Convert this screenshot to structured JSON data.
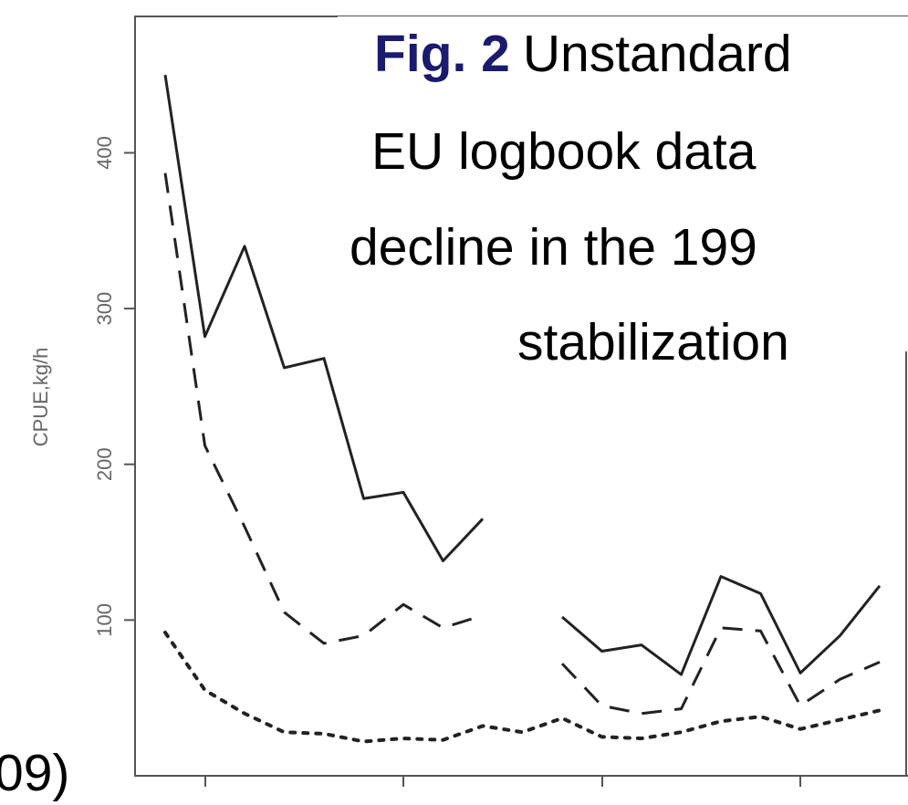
{
  "chart_data": {
    "type": "line",
    "y_label": "CPUE,kg/h",
    "annotations": [
      "Fig. 2",
      "Unstandard",
      "EU logbook data",
      "decline in the 199",
      "stabilization",
      "09)"
    ],
    "categories": [
      null,
      null,
      null,
      null,
      null,
      null,
      null,
      null,
      null,
      null,
      null,
      null,
      null,
      null,
      null,
      null,
      null,
      null,
      null
    ],
    "series": [
      {
        "color": "#222222",
        "dash": "solid",
        "values": [
          450,
          282,
          340,
          262,
          268,
          178,
          182,
          138,
          165,
          null,
          102,
          80,
          84,
          65,
          128,
          117,
          66,
          90,
          122
        ]
      },
      {
        "color": "#222222",
        "dash": "dashed",
        "values": [
          387,
          212,
          160,
          105,
          85,
          90,
          110,
          95,
          103,
          null,
          72,
          45,
          40,
          43,
          95,
          93,
          45,
          62,
          73
        ]
      },
      {
        "color": "#222222",
        "dash": "dotted",
        "values": [
          92,
          55,
          40,
          28,
          27,
          22,
          24,
          23,
          32,
          28,
          37,
          25,
          24,
          28,
          35,
          38,
          30,
          36,
          42
        ]
      }
    ],
    "ylim": [
      0,
      470
    ],
    "yticks": [
      100,
      200,
      300,
      400
    ]
  }
}
